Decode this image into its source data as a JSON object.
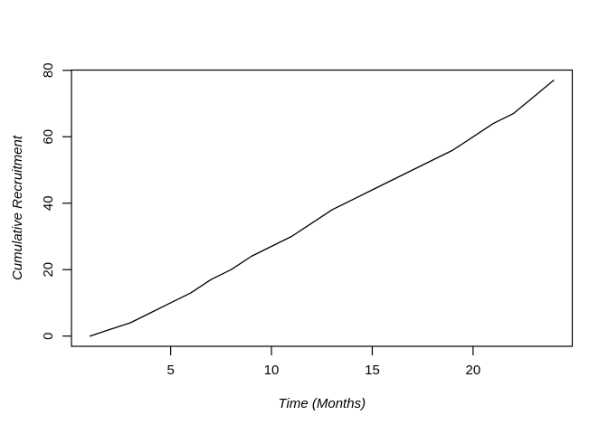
{
  "chart_data": {
    "type": "line",
    "title": "",
    "xlabel": "Time (Months)",
    "ylabel": "Cumulative Recruitment",
    "x": [
      1,
      2,
      3,
      4,
      5,
      6,
      7,
      8,
      9,
      10,
      11,
      12,
      13,
      14,
      15,
      16,
      17,
      18,
      19,
      20,
      21,
      22,
      23,
      24
    ],
    "values": [
      0,
      2,
      4,
      7,
      10,
      13,
      17,
      20,
      24,
      27,
      30,
      34,
      38,
      41,
      44,
      47,
      50,
      53,
      56,
      60,
      64,
      67,
      72,
      77
    ],
    "x_ticks": [
      5,
      10,
      15,
      20
    ],
    "y_ticks": [
      0,
      20,
      40,
      60,
      80
    ],
    "xlim": [
      0.08,
      24.92
    ],
    "ylim": [
      -3.08,
      80.08
    ],
    "grid": "off",
    "legend": "none",
    "line_color": "#000000",
    "axis_color": "#000000",
    "background_color": "#ffffff"
  }
}
